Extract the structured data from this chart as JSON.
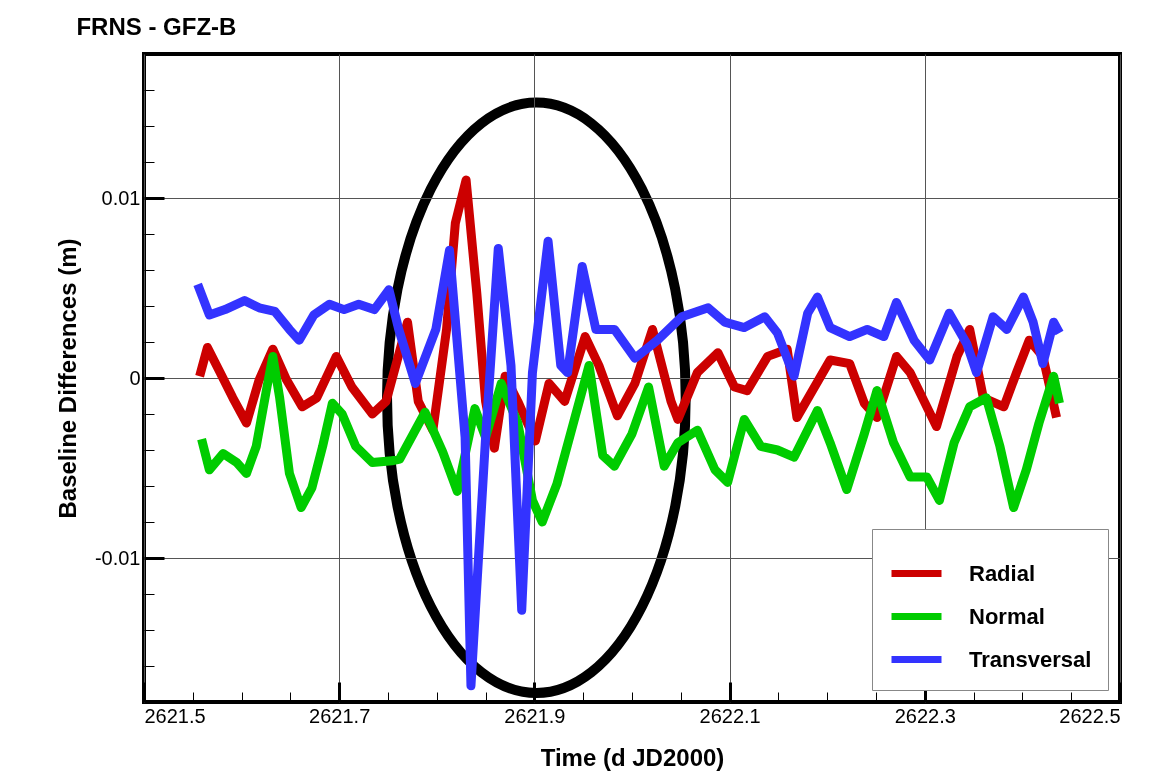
{
  "chart_data": {
    "type": "line",
    "title": "FRNS - GFZ-B",
    "xlabel": "Time (d JD2000)",
    "ylabel": "Baseline Differences (m)",
    "xlim": [
      2621.5,
      2622.5
    ],
    "xticks": [
      2621.5,
      {
        "value": 2621.55,
        "label": null
      },
      {
        "value": 2621.6,
        "label": null
      },
      {
        "value": 2621.65,
        "label": null
      },
      2621.7,
      {
        "value": 2621.75,
        "label": null
      },
      {
        "value": 2621.8,
        "label": null
      },
      {
        "value": 2621.85,
        "label": null
      },
      2621.9,
      {
        "value": 2621.95,
        "label": null
      },
      {
        "value": 2622.0,
        "label": null
      },
      {
        "value": 2622.05,
        "label": null
      },
      2622.1,
      {
        "value": 2622.15,
        "label": null
      },
      {
        "value": 2622.2,
        "label": null
      },
      {
        "value": 2622.25,
        "label": null
      },
      2622.3,
      {
        "value": 2622.35,
        "label": null
      },
      {
        "value": 2622.4,
        "label": null
      },
      {
        "value": 2622.45,
        "label": null
      },
      2622.5
    ],
    "ylim": [
      -0.018,
      0.018
    ],
    "yticks": [
      {
        "value": -0.016,
        "label": null
      },
      {
        "value": -0.014,
        "label": null
      },
      {
        "value": -0.012,
        "label": null
      },
      -0.01,
      {
        "value": -0.008,
        "label": null
      },
      {
        "value": -0.006,
        "label": null
      },
      {
        "value": -0.004,
        "label": null
      },
      {
        "value": -0.002,
        "label": null
      },
      0,
      {
        "value": 0.002,
        "label": null
      },
      {
        "value": 0.004,
        "label": null
      },
      {
        "value": 0.006,
        "label": null
      },
      {
        "value": 0.008,
        "label": null
      },
      0.01,
      {
        "value": 0.012,
        "label": null
      },
      {
        "value": 0.014,
        "label": null
      },
      {
        "value": 0.016,
        "label": null
      }
    ],
    "grid": true,
    "legend": "bottom right",
    "marker": "none",
    "line_style": "solid",
    "series": [
      {
        "name": "Radial",
        "color": "#cc0000",
        "x": [
          2621.557,
          2621.565,
          2621.578,
          2621.591,
          2621.605,
          2621.618,
          2621.632,
          2621.646,
          2621.662,
          2621.677,
          2621.697,
          2621.713,
          2621.734,
          2621.748,
          2621.77,
          2621.781,
          2621.796,
          2621.81,
          2621.819,
          2621.83,
          2621.841,
          2621.85,
          2621.859,
          2621.87,
          2621.883,
          2621.901,
          2621.915,
          2621.931,
          2621.952,
          2621.966,
          2621.985,
          2622.003,
          2622.021,
          2622.04,
          2622.047,
          2622.067,
          2622.088,
          2622.105,
          2622.118,
          2622.139,
          2622.159,
          2622.169,
          2622.187,
          2622.203,
          2622.223,
          2622.238,
          2622.251,
          2622.271,
          2622.285,
          2622.312,
          2622.333,
          2622.346,
          2622.36,
          2622.381,
          2622.394,
          2622.407,
          2622.421,
          2622.435
        ],
        "values": [
          0.0001,
          0.0017,
          0.0003,
          -0.0011,
          -0.0025,
          -0.0001,
          0.0016,
          -0.0001,
          -0.0016,
          -0.0011,
          0.0012,
          -0.0005,
          -0.002,
          -0.0013,
          0.0031,
          -0.0013,
          -0.0029,
          0.0027,
          0.0086,
          0.011,
          0.0047,
          -0.0013,
          -0.0039,
          0.0001,
          -0.0013,
          -0.0035,
          -0.0003,
          -0.0013,
          0.0023,
          0.0007,
          -0.0021,
          -0.0003,
          0.0027,
          -0.0013,
          -0.0023,
          0.0003,
          0.0014,
          -0.0005,
          -0.0007,
          0.0012,
          0.0016,
          -0.0022,
          -0.0005,
          0.001,
          0.0008,
          -0.0014,
          -0.0022,
          0.0012,
          0.0003,
          -0.0027,
          0.0012,
          0.0027,
          -0.0011,
          -0.0016,
          0.0003,
          0.0021,
          0.0012,
          -0.0022
        ]
      },
      {
        "name": "Normal",
        "color": "#00cc00",
        "x": [
          2621.559,
          2621.567,
          2621.581,
          2621.595,
          2621.605,
          2621.615,
          2621.626,
          2621.632,
          2621.639,
          2621.649,
          2621.661,
          2621.672,
          2621.683,
          2621.693,
          2621.703,
          2621.717,
          2621.734,
          2621.754,
          2621.762,
          2621.788,
          2621.806,
          2621.821,
          2621.839,
          2621.85,
          2621.866,
          2621.883,
          2621.898,
          2621.908,
          2621.923,
          2621.941,
          2621.956,
          2621.97,
          2621.982,
          2622.0,
          2622.017,
          2622.033,
          2622.047,
          2622.067,
          2622.085,
          2622.098,
          2622.115,
          2622.132,
          2622.149,
          2622.166,
          2622.19,
          2622.203,
          2622.22,
          2622.238,
          2622.251,
          2622.268,
          2622.285,
          2622.302,
          2622.315,
          2622.33,
          2622.346,
          2622.363,
          2622.377,
          2622.391,
          2622.404,
          2622.417,
          2622.432,
          2622.438
        ],
        "values": [
          -0.0034,
          -0.0051,
          -0.0042,
          -0.0047,
          -0.0053,
          -0.0038,
          -0.0005,
          0.0012,
          -0.0011,
          -0.0053,
          -0.0072,
          -0.0061,
          -0.0038,
          -0.0014,
          -0.002,
          -0.0038,
          -0.0047,
          -0.0046,
          -0.0045,
          -0.0019,
          -0.0041,
          -0.0063,
          -0.0017,
          -0.0033,
          -0.0003,
          -0.0025,
          -0.0068,
          -0.008,
          -0.0059,
          -0.0023,
          0.0007,
          -0.0043,
          -0.0049,
          -0.0031,
          -0.0005,
          -0.0049,
          -0.0036,
          -0.0029,
          -0.0051,
          -0.0058,
          -0.0023,
          -0.0038,
          -0.004,
          -0.0044,
          -0.0018,
          -0.0036,
          -0.0062,
          -0.0031,
          -0.0007,
          -0.0036,
          -0.0055,
          -0.0055,
          -0.0068,
          -0.0036,
          -0.0016,
          -0.0011,
          -0.0038,
          -0.0072,
          -0.0051,
          -0.0025,
          0.0001,
          -0.0014
        ]
      },
      {
        "name": "Transversal",
        "color": "#3333ff",
        "x": [
          2621.555,
          2621.567,
          2621.583,
          2621.603,
          2621.618,
          2621.634,
          2621.649,
          2621.659,
          2621.674,
          2621.69,
          2621.705,
          2621.72,
          2621.736,
          2621.751,
          2621.761,
          2621.778,
          2621.799,
          2621.813,
          2621.829,
          2621.835,
          2621.85,
          2621.863,
          2621.876,
          2621.887,
          2621.898,
          2621.914,
          2621.927,
          2621.934,
          2621.949,
          2621.963,
          2621.982,
          2622.003,
          2622.026,
          2622.051,
          2622.078,
          2622.095,
          2622.115,
          2622.136,
          2622.149,
          2622.166,
          2622.18,
          2622.19,
          2622.203,
          2622.223,
          2622.241,
          2622.258,
          2622.271,
          2622.289,
          2622.305,
          2622.325,
          2622.343,
          2622.353,
          2622.37,
          2622.384,
          2622.401,
          2622.411,
          2622.421,
          2622.432,
          2622.438
        ],
        "values": [
          0.0052,
          0.0035,
          0.0038,
          0.0043,
          0.0039,
          0.0037,
          0.0027,
          0.0021,
          0.0035,
          0.0041,
          0.0038,
          0.0041,
          0.0038,
          0.0049,
          0.0027,
          -0.0003,
          0.0027,
          0.0071,
          -0.0033,
          -0.0171,
          -0.0033,
          0.0072,
          0.0007,
          -0.0129,
          0.0003,
          0.0076,
          0.0007,
          0.0003,
          0.0062,
          0.0027,
          0.0027,
          0.0011,
          0.0021,
          0.0034,
          0.0039,
          0.0031,
          0.0028,
          0.0034,
          0.0025,
          0.0001,
          0.0036,
          0.0045,
          0.0028,
          0.0023,
          0.0027,
          0.0023,
          0.0042,
          0.0021,
          0.001,
          0.0036,
          0.0019,
          0.0003,
          0.0034,
          0.0027,
          0.0045,
          0.0031,
          0.0008,
          0.0031,
          0.0025
        ]
      }
    ]
  }
}
